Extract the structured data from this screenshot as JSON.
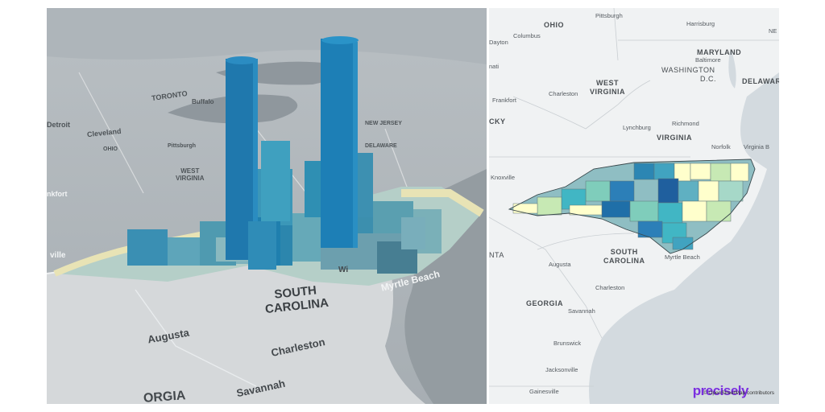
{
  "left_map": {
    "labels": {
      "south_carolina_line1": "SOUTH",
      "south_carolina_line2": "CAROLINA",
      "augusta": "Augusta",
      "charleston": "Charleston",
      "savannah": "Savannah",
      "myrtle_beach": "Myrtle Beach",
      "toronto": "TORONTO",
      "buffalo": "Buffalo",
      "cleveland": "Cleveland",
      "detroit": "Detroit",
      "ohio": "OHIO",
      "west_virginia_line1": "WEST",
      "west_virginia_line2": "VIRGINIA",
      "pittsburgh": "Pittsburgh",
      "new_jersey": "NEW JERSEY",
      "delaware": "DELAWARE",
      "georgia_partial": "ORGIA",
      "wi_partial": "Wi",
      "ville_partial": "ville",
      "nkfort_partial": "nkfort"
    }
  },
  "right_map": {
    "labels": {
      "ohio": "OHIO",
      "pittsburgh": "Pittsburgh",
      "harrisburg": "Harrisburg",
      "columbus": "Columbus",
      "dayton": "Dayton",
      "maryland": "MARYLAND",
      "baltimore": "Baltimore",
      "washington": "WASHINGTON",
      "dc": "D.C.",
      "delaware": "DELAWARE",
      "west_virginia_line1": "WEST",
      "west_virginia_line2": "VIRGINIA",
      "charleston_wv": "Charleston",
      "frankfort": "Frankfort",
      "nati": "nati",
      "cky": "CKY",
      "lynchburg": "Lynchburg",
      "richmond": "Richmond",
      "virginia": "VIRGINIA",
      "norfolk": "Norfolk",
      "virginia_beach": "Virginia B",
      "knoxville": "Knoxville",
      "south_carolina_line1": "SOUTH",
      "south_carolina_line2": "CAROLINA",
      "augusta": "Augusta",
      "nta": "NTA",
      "charleston_sc": "Charleston",
      "myrtle_beach": "Myrtle Beach",
      "georgia": "GEORGIA",
      "savannah": "Savannah",
      "brunswick": "Brunswick",
      "jacksonville": "Jacksonville",
      "gainesville": "Gainesville",
      "ne_partial": "NE"
    },
    "legend_colors": [
      "#ffffcc",
      "#c7e9b4",
      "#7fcdbb",
      "#41b6c4",
      "#2c7fb8",
      "#1f5f9e"
    ]
  },
  "branding": {
    "logo": "precisely",
    "attribution": "© OpenStreetMap contributors"
  }
}
